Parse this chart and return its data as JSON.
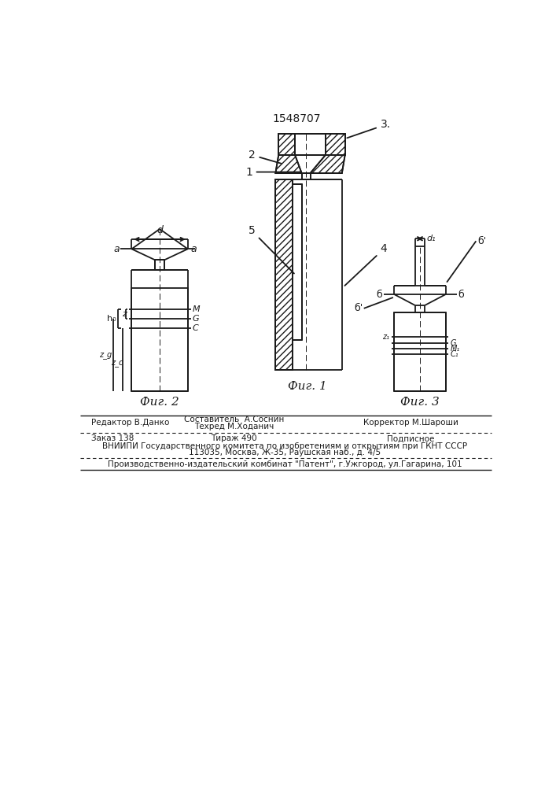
{
  "title": "1548707",
  "fig1_caption": "Фиг. 1",
  "fig2_caption": "Фиг. 2",
  "fig3_caption": "Фиг. 3",
  "lc": "#1a1a1a",
  "lw": 1.3,
  "footer": {
    "line1_left": "Редактор В.Данко",
    "line1_center_top": "Составитель  А.Соснин",
    "line1_center_bot": "Техред М.Ходанич",
    "line1_right": "Корректор М.Шароши",
    "line2_left": "Заказ 138",
    "line2_center": "Тираж 490",
    "line2_right": "Подписное",
    "line3": "ВНИИПИ Государственного комитета по изобретениям и открытиям при ГКНТ СССР",
    "line4": "113035, Москва, Ж-35, Раушская наб., д. 4/5",
    "line5": "Производственно-издательский комбинат \"Патент\", г.Ужгород, ул.Гагарина, 101"
  }
}
